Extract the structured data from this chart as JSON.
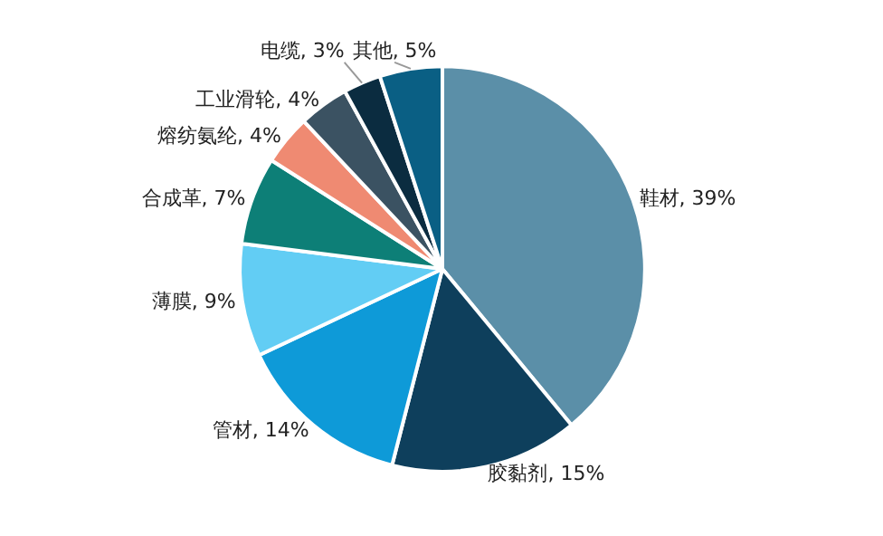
{
  "chart_data": {
    "type": "pie",
    "categories": [
      "鞋材",
      "胶黏剂",
      "管材",
      "薄膜",
      "合成革",
      "熔纺氨纶",
      "工业滑轮",
      "电缆",
      "其他"
    ],
    "values": [
      39,
      15,
      14,
      9,
      7,
      4,
      4,
      3,
      5
    ],
    "value_labels": [
      "39%",
      "15%",
      "14%",
      "9%",
      "7%",
      "4%",
      "4%",
      "3%",
      "5%"
    ],
    "colors": [
      "#5b8fa8",
      "#0e3f5c",
      "#0e9ad8",
      "#62cdf4",
      "#0d7f77",
      "#ef8a72",
      "#3b5262",
      "#0b2c40",
      "#0a5f84"
    ]
  }
}
